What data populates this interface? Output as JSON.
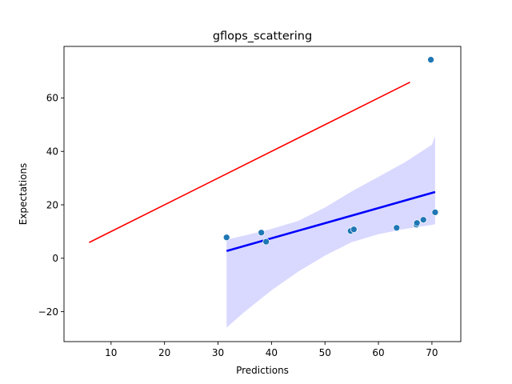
{
  "chart_data": {
    "type": "scatter",
    "title": "gflops_scattering",
    "xlabel": "Predictions",
    "ylabel": "Expectations",
    "xlim": [
      1.2,
      75.4
    ],
    "ylim": [
      -31.2,
      79.3
    ],
    "xticks": [
      10,
      20,
      30,
      40,
      50,
      60,
      70
    ],
    "yticks": [
      -20,
      0,
      20,
      40,
      60
    ],
    "grid": false,
    "legend": "none",
    "points": {
      "color": "#1f77b4",
      "x": [
        31.6,
        38.1,
        39.0,
        54.8,
        55.4,
        63.4,
        67.1,
        67.2,
        68.4,
        69.8,
        70.6
      ],
      "y": [
        7.8,
        9.6,
        6.2,
        10.2,
        10.8,
        11.4,
        12.6,
        13.2,
        14.4,
        74.3,
        17.2
      ]
    },
    "reference_line": {
      "color": "#ff0000",
      "x": [
        5.9,
        65.9
      ],
      "y": [
        5.9,
        65.9
      ]
    },
    "regression_line": {
      "color": "#0000ff",
      "x": [
        31.6,
        70.6
      ],
      "y": [
        2.7,
        24.8
      ]
    },
    "confidence_band": {
      "color": "#0000ff",
      "x": [
        31.6,
        35,
        40,
        45,
        50,
        55,
        60,
        65,
        70,
        70.6
      ],
      "lower": [
        -26.0,
        -20.0,
        -12.0,
        -5.0,
        1.0,
        6.0,
        9.0,
        11.0,
        12.5,
        12.8
      ],
      "upper": [
        7.0,
        8.5,
        11.0,
        14.0,
        19.0,
        25.0,
        30.5,
        36.0,
        42.5,
        45.8
      ]
    }
  }
}
